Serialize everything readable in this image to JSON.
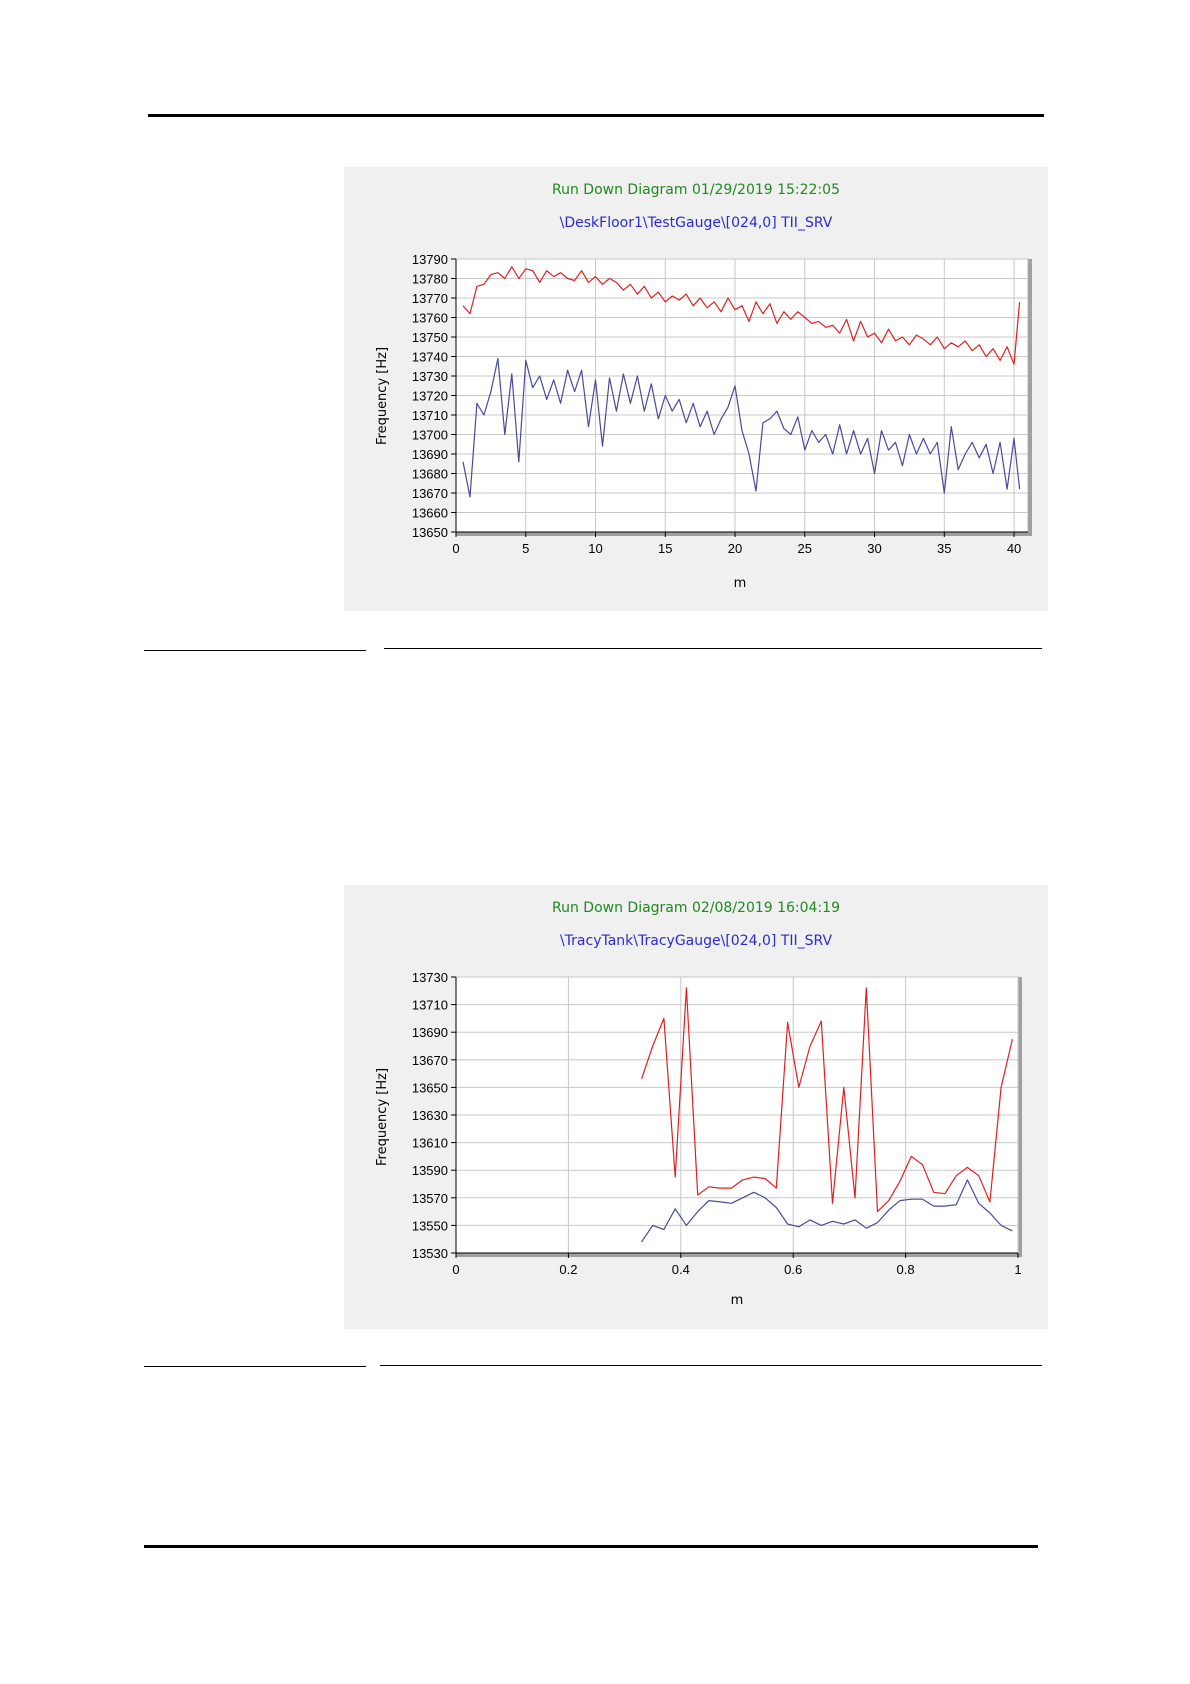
{
  "charts": [
    {
      "chart_data": {
        "type": "line",
        "title": "Run Down Diagram 01/29/2019 15:22:05",
        "subtitle": "\\DeskFloor1\\TestGauge\\[024,0] TII_SRV",
        "xlabel": "m",
        "ylabel": "Frequency [Hz]",
        "xlim": [
          0,
          41
        ],
        "ylim": [
          13650,
          13790
        ],
        "xticks": [
          "0",
          "5",
          "10",
          "15",
          "20",
          "25",
          "30",
          "35",
          "40"
        ],
        "yticks": [
          "13650",
          "13660",
          "13670",
          "13680",
          "13690",
          "13700",
          "13710",
          "13720",
          "13730",
          "13740",
          "13750",
          "13760",
          "13770",
          "13780",
          "13790"
        ],
        "grid": true,
        "series": [
          {
            "color": "#e02020",
            "x": [
              0.5,
              1.0,
              1.5,
              2.0,
              2.5,
              3.0,
              3.5,
              4.0,
              4.5,
              5.0,
              5.5,
              6.0,
              6.5,
              7.0,
              7.5,
              8.0,
              8.5,
              9.0,
              9.5,
              10.0,
              10.5,
              11.0,
              11.5,
              12.0,
              12.5,
              13.0,
              13.5,
              14.0,
              14.5,
              15.0,
              15.5,
              16.0,
              16.5,
              17.0,
              17.5,
              18.0,
              18.5,
              19.0,
              19.5,
              20.0,
              20.5,
              21.0,
              21.5,
              22.0,
              22.5,
              23.0,
              23.5,
              24.0,
              24.5,
              25.0,
              25.5,
              26.0,
              26.5,
              27.0,
              27.5,
              28.0,
              28.5,
              29.0,
              29.5,
              30.0,
              30.5,
              31.0,
              31.5,
              32.0,
              32.5,
              33.0,
              33.5,
              34.0,
              34.5,
              35.0,
              35.5,
              36.0,
              36.5,
              37.0,
              37.5,
              38.0,
              38.5,
              39.0,
              39.5,
              40.0,
              40.4
            ],
            "y": [
              13766,
              13762,
              13776,
              13777,
              13782,
              13783,
              13780,
              13786,
              13780,
              13785,
              13784,
              13778,
              13784,
              13781,
              13783,
              13780,
              13779,
              13784,
              13778,
              13781,
              13777,
              13780,
              13778,
              13774,
              13777,
              13772,
              13776,
              13770,
              13773,
              13768,
              13771,
              13769,
              13772,
              13766,
              13770,
              13765,
              13768,
              13763,
              13770,
              13764,
              13766,
              13758,
              13768,
              13762,
              13767,
              13757,
              13763,
              13759,
              13763,
              13760,
              13757,
              13758,
              13755,
              13756,
              13752,
              13759,
              13748,
              13758,
              13750,
              13752,
              13747,
              13754,
              13748,
              13750,
              13746,
              13751,
              13749,
              13746,
              13750,
              13744,
              13747,
              13745,
              13748,
              13743,
              13746,
              13740,
              13744,
              13738,
              13745,
              13736,
              13768
            ]
          },
          {
            "color": "#4a4a9a",
            "x": [
              0.5,
              1.0,
              1.5,
              2.0,
              2.5,
              3.0,
              3.5,
              4.0,
              4.5,
              5.0,
              5.5,
              6.0,
              6.5,
              7.0,
              7.5,
              8.0,
              8.5,
              9.0,
              9.5,
              10.0,
              10.5,
              11.0,
              11.5,
              12.0,
              12.5,
              13.0,
              13.5,
              14.0,
              14.5,
              15.0,
              15.5,
              16.0,
              16.5,
              17.0,
              17.5,
              18.0,
              18.5,
              19.0,
              19.5,
              20.0,
              20.5,
              21.0,
              21.5,
              22.0,
              22.5,
              23.0,
              23.5,
              24.0,
              24.5,
              25.0,
              25.5,
              26.0,
              26.5,
              27.0,
              27.5,
              28.0,
              28.5,
              29.0,
              29.5,
              30.0,
              30.5,
              31.0,
              31.5,
              32.0,
              32.5,
              33.0,
              33.5,
              34.0,
              34.5,
              35.0,
              35.5,
              36.0,
              36.5,
              37.0,
              37.5,
              38.0,
              38.5,
              39.0,
              39.5,
              40.0,
              40.4
            ],
            "y": [
              13686,
              13668,
              13716,
              13710,
              13722,
              13739,
              13700,
              13731,
              13686,
              13738,
              13724,
              13730,
              13718,
              13728,
              13716,
              13733,
              13722,
              13733,
              13704,
              13728,
              13694,
              13729,
              13712,
              13731,
              13716,
              13730,
              13712,
              13726,
              13708,
              13720,
              13712,
              13718,
              13706,
              13716,
              13704,
              13712,
              13700,
              13708,
              13714,
              13725,
              13702,
              13690,
              13671,
              13706,
              13708,
              13712,
              13703,
              13700,
              13709,
              13692,
              13702,
              13696,
              13700,
              13690,
              13705,
              13690,
              13702,
              13690,
              13698,
              13680,
              13702,
              13692,
              13696,
              13684,
              13700,
              13690,
              13698,
              13690,
              13696,
              13670,
              13704,
              13682,
              13690,
              13696,
              13688,
              13695,
              13680,
              13696,
              13672,
              13698,
              13672
            ]
          }
        ]
      }
    },
    {
      "chart_data": {
        "type": "line",
        "title": "Run Down Diagram 02/08/2019 16:04:19",
        "subtitle": "\\TracyTank\\TracyGauge\\[024,0] TII_SRV",
        "xlabel": "m",
        "ylabel": "Frequency [Hz]",
        "xlim": [
          0,
          1
        ],
        "ylim": [
          13530,
          13730
        ],
        "xticks": [
          "0",
          "0.2",
          "0.4",
          "0.6",
          "0.8",
          "1"
        ],
        "yticks": [
          "13530",
          "13550",
          "13570",
          "13590",
          "13610",
          "13630",
          "13650",
          "13670",
          "13690",
          "13710",
          "13730"
        ],
        "grid": true,
        "series": [
          {
            "color": "#e02020",
            "x": [
              0.33,
              0.35,
              0.37,
              0.39,
              0.41,
              0.43,
              0.45,
              0.47,
              0.49,
              0.51,
              0.53,
              0.55,
              0.57,
              0.59,
              0.61,
              0.63,
              0.65,
              0.67,
              0.69,
              0.71,
              0.73,
              0.75,
              0.77,
              0.79,
              0.81,
              0.83,
              0.85,
              0.87,
              0.89,
              0.91,
              0.93,
              0.95,
              0.97,
              0.99
            ],
            "y": [
              13656,
              13680,
              13700,
              13585,
              13722,
              13572,
              13578,
              13577,
              13577,
              13583,
              13585,
              13584,
              13577,
              13697,
              13650,
              13680,
              13698,
              13566,
              13650,
              13570,
              13722,
              13560,
              13568,
              13582,
              13600,
              13594,
              13574,
              13573,
              13586,
              13592,
              13586,
              13567,
              13650,
              13685
            ]
          },
          {
            "color": "#4a4a9a",
            "x": [
              0.33,
              0.35,
              0.37,
              0.39,
              0.41,
              0.43,
              0.45,
              0.47,
              0.49,
              0.51,
              0.53,
              0.55,
              0.57,
              0.59,
              0.61,
              0.63,
              0.65,
              0.67,
              0.69,
              0.71,
              0.73,
              0.75,
              0.77,
              0.79,
              0.81,
              0.83,
              0.85,
              0.87,
              0.89,
              0.91,
              0.93,
              0.95,
              0.97,
              0.99
            ],
            "y": [
              13538,
              13550,
              13547,
              13562,
              13550,
              13560,
              13568,
              13567,
              13566,
              13570,
              13574,
              13570,
              13563,
              13551,
              13549,
              13554,
              13550,
              13553,
              13551,
              13554,
              13548,
              13552,
              13561,
              13568,
              13569,
              13569,
              13564,
              13564,
              13565,
              13583,
              13566,
              13559,
              13550,
              13546
            ]
          }
        ]
      }
    }
  ]
}
